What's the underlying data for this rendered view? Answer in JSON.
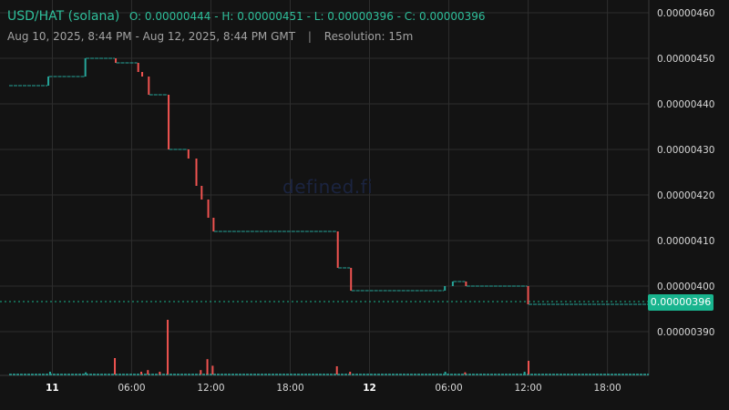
{
  "header": {
    "pair": "USD/HAT (solana)",
    "ohlc": "O: 0.00000444 - H: 0.00000451 - L: 0.00000396 - C: 0.00000396",
    "range": "Aug 10, 2025, 8:44 PM - Aug 12, 2025, 8:44 PM GMT",
    "separator": "|",
    "resolution": "Resolution: 15m"
  },
  "watermark": "defined.fi",
  "last_price": "0.00000396",
  "colors": {
    "up": "#26a69a",
    "down": "#ef5350",
    "background": "#131313",
    "grid": "#2e2e2e",
    "price_tag": "#19b48e"
  },
  "chart_data": {
    "type": "candlestick",
    "xlabel": "",
    "ylabel": "",
    "y_range": [
      3.8e-06,
      4.6e-06
    ],
    "y_ticks": [
      "0.00000460",
      "0.00000450",
      "0.00000440",
      "0.00000430",
      "0.00000420",
      "0.00000410",
      "0.00000400",
      "0.00000390"
    ],
    "x_ticks": [
      {
        "label": "11",
        "bold": true,
        "hour": 3.27
      },
      {
        "label": "06:00",
        "bold": false,
        "hour": 9.27
      },
      {
        "label": "12:00",
        "bold": false,
        "hour": 15.27
      },
      {
        "label": "18:00",
        "bold": false,
        "hour": 21.27
      },
      {
        "label": "12",
        "bold": true,
        "hour": 27.27
      },
      {
        "label": "06:00",
        "bold": false,
        "hour": 33.27
      },
      {
        "label": "12:00",
        "bold": false,
        "hour": 39.27
      },
      {
        "label": "18:00",
        "bold": false,
        "hour": 45.27
      }
    ],
    "x_range_hours": [
      0,
      48.4
    ],
    "grid": true,
    "candles": [
      {
        "t": 0.0,
        "t2": 2.9,
        "o": 4.44e-06,
        "c": 4.44e-06
      },
      {
        "t": 2.9,
        "t2": 3.0,
        "o": 4.44e-06,
        "c": 4.46e-06
      },
      {
        "t": 3.0,
        "t2": 5.7,
        "o": 4.46e-06,
        "c": 4.46e-06
      },
      {
        "t": 5.7,
        "t2": 5.8,
        "o": 4.46e-06,
        "c": 4.5e-06
      },
      {
        "t": 5.8,
        "t2": 8.0,
        "o": 4.5e-06,
        "c": 4.5e-06
      },
      {
        "t": 8.0,
        "t2": 8.1,
        "o": 4.5e-06,
        "c": 4.49e-06
      },
      {
        "t": 8.1,
        "t2": 9.7,
        "o": 4.49e-06,
        "c": 4.49e-06
      },
      {
        "t": 9.7,
        "t2": 9.8,
        "o": 4.49e-06,
        "c": 4.47e-06
      },
      {
        "t": 10.0,
        "t2": 10.1,
        "o": 4.47e-06,
        "c": 4.46e-06
      },
      {
        "t": 10.5,
        "t2": 10.6,
        "o": 4.46e-06,
        "c": 4.42e-06
      },
      {
        "t": 10.6,
        "t2": 12.0,
        "o": 4.42e-06,
        "c": 4.42e-06
      },
      {
        "t": 12.0,
        "t2": 12.1,
        "o": 4.42e-06,
        "c": 4.3e-06
      },
      {
        "t": 12.1,
        "t2": 13.5,
        "o": 4.3e-06,
        "c": 4.3e-06
      },
      {
        "t": 13.5,
        "t2": 13.6,
        "o": 4.3e-06,
        "c": 4.28e-06
      },
      {
        "t": 14.1,
        "t2": 14.2,
        "o": 4.28e-06,
        "c": 4.22e-06
      },
      {
        "t": 14.5,
        "t2": 14.6,
        "o": 4.22e-06,
        "c": 4.19e-06
      },
      {
        "t": 15.0,
        "t2": 15.1,
        "o": 4.19e-06,
        "c": 4.15e-06
      },
      {
        "t": 15.4,
        "t2": 15.5,
        "o": 4.15e-06,
        "c": 4.12e-06
      },
      {
        "t": 15.5,
        "t2": 24.8,
        "o": 4.12e-06,
        "c": 4.12e-06
      },
      {
        "t": 24.8,
        "t2": 24.9,
        "o": 4.12e-06,
        "c": 4.04e-06
      },
      {
        "t": 24.9,
        "t2": 25.8,
        "o": 4.04e-06,
        "c": 4.04e-06
      },
      {
        "t": 25.8,
        "t2": 25.9,
        "o": 4.04e-06,
        "c": 3.99e-06
      },
      {
        "t": 25.9,
        "t2": 32.9,
        "o": 3.99e-06,
        "c": 3.99e-06
      },
      {
        "t": 32.9,
        "t2": 33.0,
        "o": 3.99e-06,
        "c": 4e-06
      },
      {
        "t": 33.5,
        "t2": 33.6,
        "o": 4e-06,
        "c": 4.01e-06
      },
      {
        "t": 33.6,
        "t2": 34.5,
        "o": 4.01e-06,
        "c": 4.01e-06
      },
      {
        "t": 34.5,
        "t2": 34.6,
        "o": 4.01e-06,
        "c": 4e-06
      },
      {
        "t": 34.6,
        "t2": 39.2,
        "o": 4e-06,
        "c": 4e-06
      },
      {
        "t": 39.2,
        "t2": 39.3,
        "o": 4e-06,
        "c": 3.96e-06
      },
      {
        "t": 39.3,
        "t2": 48.4,
        "o": 3.96e-06,
        "c": 3.96e-06
      }
    ],
    "volume_spikes": [
      {
        "t": 3.1,
        "v": 0.05,
        "dir": "up"
      },
      {
        "t": 5.8,
        "v": 0.04,
        "dir": "up"
      },
      {
        "t": 8.0,
        "v": 0.3,
        "dir": "down"
      },
      {
        "t": 10.0,
        "v": 0.05,
        "dir": "down"
      },
      {
        "t": 10.5,
        "v": 0.08,
        "dir": "down"
      },
      {
        "t": 11.4,
        "v": 0.05,
        "dir": "down"
      },
      {
        "t": 12.0,
        "v": 1.0,
        "dir": "down"
      },
      {
        "t": 14.5,
        "v": 0.08,
        "dir": "down"
      },
      {
        "t": 15.0,
        "v": 0.28,
        "dir": "down"
      },
      {
        "t": 15.4,
        "v": 0.16,
        "dir": "down"
      },
      {
        "t": 24.8,
        "v": 0.15,
        "dir": "down"
      },
      {
        "t": 25.8,
        "v": 0.05,
        "dir": "down"
      },
      {
        "t": 33.0,
        "v": 0.05,
        "dir": "up"
      },
      {
        "t": 34.5,
        "v": 0.04,
        "dir": "down"
      },
      {
        "t": 39.0,
        "v": 0.05,
        "dir": "up"
      },
      {
        "t": 39.3,
        "v": 0.25,
        "dir": "down"
      }
    ]
  }
}
